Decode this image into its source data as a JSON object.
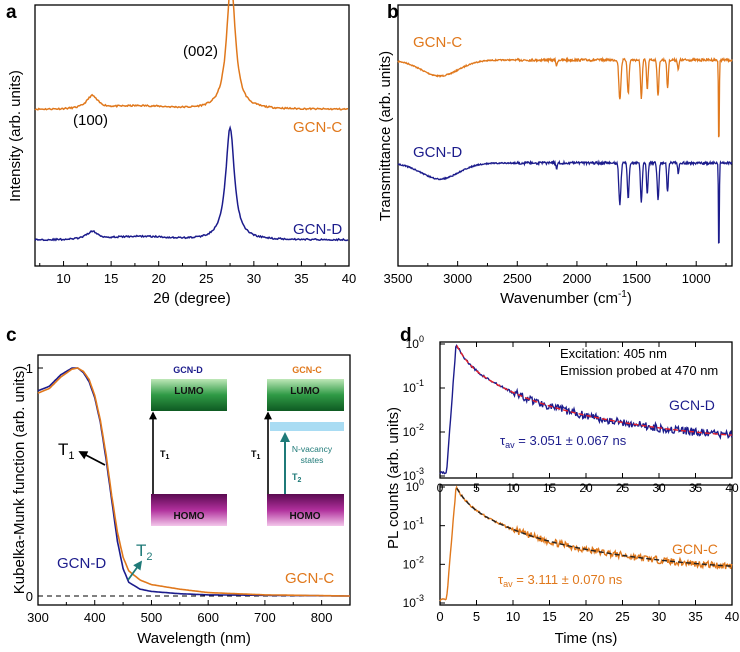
{
  "colors": {
    "gcn_c": "#e0781c",
    "gcn_d": "#1c1c8c",
    "fit_d": "#e5202a",
    "fit_c": "#222222",
    "teal": "#1f7a78",
    "lumo": "#1f8a3a",
    "homo": "#a0148c",
    "nvac": "#a9dcf3"
  },
  "chart_data": [
    {
      "panel": "a",
      "type": "line",
      "xlabel": "2θ (degree)",
      "ylabel": "Intensity (arb. units)",
      "xlim": [
        7,
        40
      ],
      "xticks": [
        10,
        15,
        20,
        25,
        30,
        35,
        40
      ],
      "series": [
        {
          "name": "GCN-C",
          "baseline": 0.6,
          "peaks": [
            {
              "x": 13.0,
              "height": 0.05
            },
            {
              "x": 27.6,
              "height": 0.49
            }
          ]
        },
        {
          "name": "GCN-D",
          "baseline": 0.1,
          "peaks": [
            {
              "x": 13.0,
              "height": 0.03
            },
            {
              "x": 27.5,
              "height": 0.43
            }
          ]
        }
      ],
      "annotations": [
        "(002)",
        "(100)"
      ]
    },
    {
      "panel": "b",
      "type": "line",
      "xlabel": "Wavenumber (cm⁻¹)",
      "ylabel": "Transmittance (arb. units)",
      "xlim": [
        3500,
        700
      ],
      "xticks": [
        3500,
        3000,
        2500,
        2000,
        1500,
        1000
      ],
      "series": [
        {
          "name": "GCN-C"
        },
        {
          "name": "GCN-D"
        }
      ],
      "bands_cm1": [
        3150,
        1640,
        1570,
        1460,
        1410,
        1320,
        1240,
        810
      ]
    },
    {
      "panel": "c",
      "type": "line",
      "xlabel": "Wavelength (nm)",
      "ylabel": "Kubelka-Munk function (arb. units)",
      "xlim": [
        300,
        850
      ],
      "xticks": [
        300,
        400,
        500,
        600,
        700,
        800
      ],
      "yticks": [
        0,
        1
      ],
      "series": [
        {
          "name": "GCN-D",
          "x": [
            300,
            320,
            340,
            360,
            370,
            380,
            390,
            400,
            410,
            420,
            430,
            440,
            450,
            460,
            480,
            500,
            550,
            600,
            850
          ],
          "y": [
            0.9,
            0.92,
            0.97,
            1.0,
            1.0,
            0.98,
            0.94,
            0.87,
            0.76,
            0.6,
            0.42,
            0.24,
            0.12,
            0.06,
            0.03,
            0.02,
            0.01,
            0.005,
            0.0
          ]
        },
        {
          "name": "GCN-C",
          "x": [
            300,
            320,
            340,
            360,
            370,
            380,
            390,
            400,
            410,
            420,
            430,
            440,
            450,
            460,
            480,
            500,
            550,
            600,
            700,
            850
          ],
          "y": [
            0.89,
            0.91,
            0.96,
            0.995,
            1.0,
            0.985,
            0.95,
            0.88,
            0.77,
            0.62,
            0.44,
            0.28,
            0.17,
            0.11,
            0.07,
            0.05,
            0.03,
            0.015,
            0.005,
            0.0
          ]
        }
      ],
      "labels": {
        "t1": "T",
        "t1_sub": "1",
        "t2": "T",
        "t2_sub": "2"
      },
      "inset": {
        "left_title": "GCN-D",
        "right_title": "GCN-C",
        "lumo": "LUMO",
        "homo": "HOMO",
        "nvac_line1": "N-vacancy",
        "nvac_line2": "states",
        "t1": "T",
        "t1_sub": "1",
        "t2": "T",
        "t2_sub": "2"
      }
    },
    {
      "panel": "d",
      "type": "line",
      "xlabel": "Time (ns)",
      "ylabel": "PL counts (arb. units)",
      "xlim": [
        0,
        40
      ],
      "xticks": [
        0,
        5,
        10,
        15,
        20,
        25,
        30,
        35,
        40
      ],
      "ylim_log": [
        0.001,
        1
      ],
      "yticks_labels": [
        "10",
        "10",
        "10",
        "10"
      ],
      "yticks_exponents": [
        "0",
        "-1",
        "-2",
        "-3"
      ],
      "excitation": "Excitation: 405 nm",
      "emission": "Emission probed at 470 nm",
      "series": [
        {
          "name": "GCN-D",
          "tau_label": "τ",
          "tau_sub": "av",
          "tau_value": " = 3.051 ± 0.067 ns",
          "peak_x": 2.2,
          "floor": 0.006,
          "fit": "red-dashed"
        },
        {
          "name": "GCN-C",
          "tau_label": "τ",
          "tau_sub": "av",
          "tau_value": " = 3.111 ± 0.070 ns",
          "peak_x": 2.2,
          "floor": 0.0065,
          "fit": "black-dashed"
        }
      ]
    }
  ],
  "panel_letters": [
    "a",
    "b",
    "c",
    "d"
  ],
  "peaks": {
    "p002": "(002)",
    "p100": "(100)"
  },
  "series_labels": {
    "gcn_c": "GCN-C",
    "gcn_d": "GCN-D"
  },
  "axes": {
    "a_x": "2θ (degree)",
    "a_y": "Intensity (arb. units)",
    "b_x_pre": "Wavenumber (cm",
    "b_x_sup": "-1",
    "b_x_post": ")",
    "b_y": "Transmittance (arb. units)",
    "c_x": "Wavelength (nm)",
    "c_y": "Kubelka-Munk function (arb. units)",
    "d_x": "Time (ns)",
    "d_y": "PL counts (arb. units)"
  },
  "ticks": {
    "a_x": [
      "10",
      "15",
      "20",
      "25",
      "30",
      "35",
      "40"
    ],
    "b_x": [
      "3500",
      "3000",
      "2500",
      "2000",
      "1500",
      "1000"
    ],
    "c_x": [
      "300",
      "400",
      "500",
      "600",
      "700",
      "800"
    ],
    "c_y": [
      "0",
      "1"
    ],
    "d_x": [
      "0",
      "5",
      "10",
      "15",
      "20",
      "25",
      "30",
      "35",
      "40"
    ]
  }
}
